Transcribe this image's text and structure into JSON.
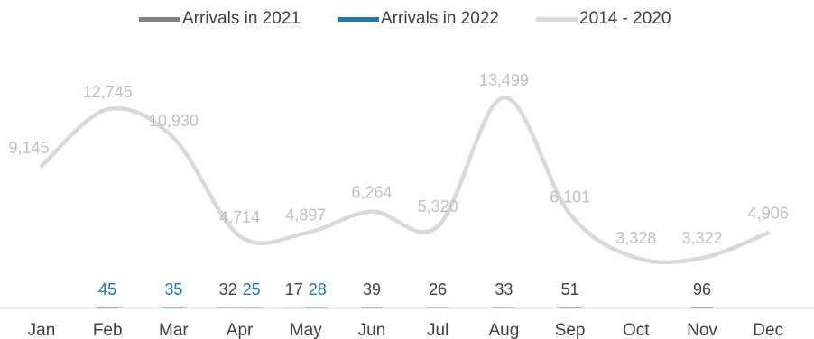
{
  "chart_data": {
    "type": "line",
    "categories": [
      "Jan",
      "Feb",
      "Mar",
      "Apr",
      "May",
      "Jun",
      "Jul",
      "Aug",
      "Sep",
      "Oct",
      "Nov",
      "Dec"
    ],
    "series": [
      {
        "name": "Arrivals in 2021",
        "type": "bar",
        "color": "#7f7f7f",
        "values": [
          null,
          null,
          null,
          32,
          17,
          39,
          26,
          33,
          51,
          null,
          96,
          null
        ]
      },
      {
        "name": "Arrivals in 2022",
        "type": "bar",
        "color": "#1f77b4",
        "values": [
          null,
          45,
          35,
          25,
          28,
          null,
          null,
          null,
          null,
          null,
          null,
          null
        ]
      },
      {
        "name": "2014 - 2020",
        "type": "line",
        "color": "#d9d9d9",
        "values": [
          9145,
          12745,
          10930,
          4714,
          4897,
          6264,
          5320,
          13499,
          6101,
          3328,
          3322,
          4906
        ],
        "labels": [
          "9,145",
          "12,745",
          "10,930",
          "4,714",
          "4,897",
          "6,264",
          "5,320",
          "13,499",
          "6,101",
          "3,328",
          "3,322",
          "4,906"
        ]
      }
    ],
    "legend": {
      "position": "top",
      "entries": [
        "Arrivals in 2021",
        "Arrivals in 2022",
        "2014 - 2020"
      ]
    },
    "grid": false,
    "colors": {
      "bar_2021_label": "#404040",
      "bar_2022_label": "#1f77b4",
      "line_label": "#bfbfbf",
      "axis_label": "#404040"
    }
  }
}
